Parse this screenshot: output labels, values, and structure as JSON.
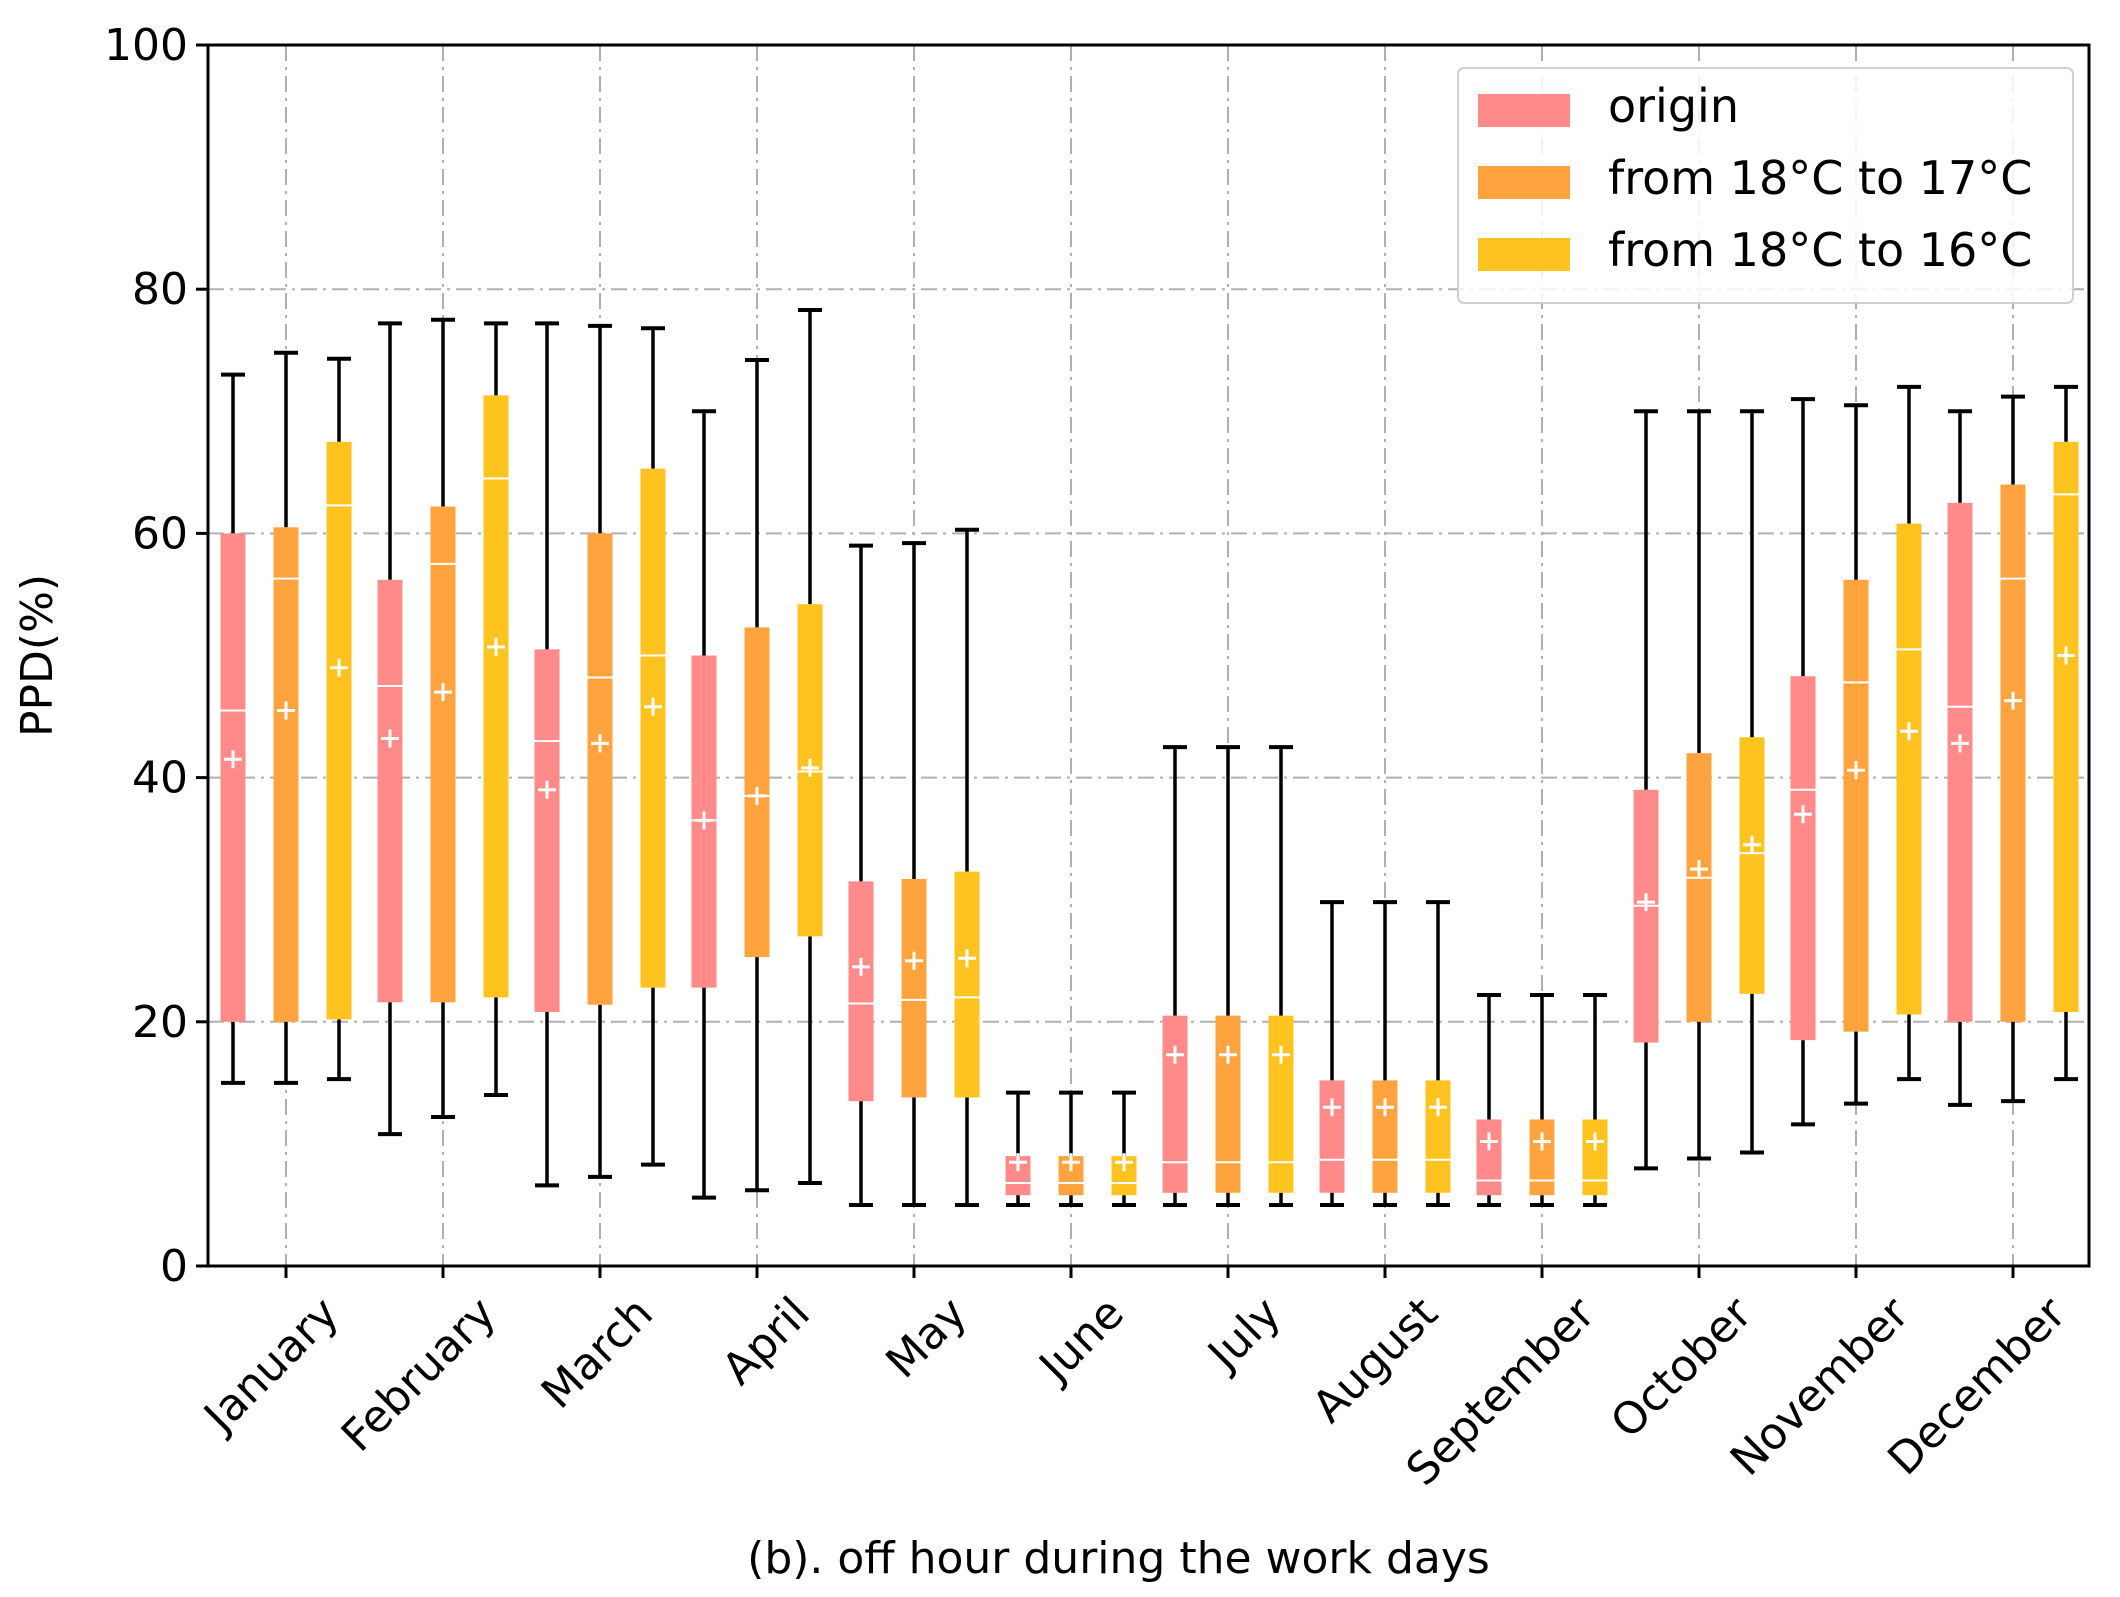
{
  "chart_data": {
    "type": "box",
    "title": "",
    "xlabel": "(b). off hour during the work days",
    "ylabel": "PPD(%)",
    "ylim": [
      0,
      100
    ],
    "yticks": [
      "0",
      "20",
      "40",
      "60",
      "80",
      "100"
    ],
    "grid": true,
    "legend_position": "top-right",
    "categories": [
      "January",
      "February",
      "March",
      "April",
      "May",
      "June",
      "July",
      "August",
      "September",
      "October",
      "November",
      "December"
    ],
    "series": [
      {
        "name": "origin",
        "color": "#FF8A8A",
        "boxes": [
          {
            "whislo": 15,
            "q1": 20,
            "med": 45.5,
            "q3": 60,
            "whishi": 73,
            "mean": 41.5
          },
          {
            "whislo": 10.8,
            "q1": 21.6,
            "med": 47.5,
            "q3": 56.2,
            "whishi": 77.2,
            "mean": 43.2
          },
          {
            "whislo": 6.6,
            "q1": 20.8,
            "med": 43,
            "q3": 50.5,
            "whishi": 77.2,
            "mean": 39
          },
          {
            "whislo": 5.6,
            "q1": 22.8,
            "med": 36.5,
            "q3": 50,
            "whishi": 70,
            "mean": 36.5
          },
          {
            "whislo": 5,
            "q1": 13.5,
            "med": 21.5,
            "q3": 31.5,
            "whishi": 59,
            "mean": 24.5
          },
          {
            "whislo": 5,
            "q1": 5.8,
            "med": 6.8,
            "q3": 9,
            "whishi": 14.2,
            "mean": 8.5
          },
          {
            "whislo": 5,
            "q1": 6,
            "med": 8.5,
            "q3": 20.5,
            "whishi": 42.5,
            "mean": 17.3
          },
          {
            "whislo": 5,
            "q1": 6,
            "med": 8.7,
            "q3": 15.2,
            "whishi": 29.8,
            "mean": 13
          },
          {
            "whislo": 5,
            "q1": 5.8,
            "med": 7,
            "q3": 12,
            "whishi": 22.2,
            "mean": 10.2
          },
          {
            "whislo": 8,
            "q1": 18.3,
            "med": 29.5,
            "q3": 39,
            "whishi": 70,
            "mean": 29.8
          },
          {
            "whislo": 11.6,
            "q1": 18.5,
            "med": 39,
            "q3": 48.3,
            "whishi": 71,
            "mean": 37
          },
          {
            "whislo": 13.2,
            "q1": 20,
            "med": 45.8,
            "q3": 62.5,
            "whishi": 70,
            "mean": 42.8
          }
        ]
      },
      {
        "name": "from 18°C to 17°C",
        "color": "#FFA33F",
        "boxes": [
          {
            "whislo": 15,
            "q1": 20,
            "med": 56.3,
            "q3": 60.5,
            "whishi": 74.8,
            "mean": 45.5
          },
          {
            "whislo": 12.2,
            "q1": 21.6,
            "med": 57.5,
            "q3": 62.2,
            "whishi": 77.5,
            "mean": 47
          },
          {
            "whislo": 7.3,
            "q1": 21.4,
            "med": 48.2,
            "q3": 60,
            "whishi": 77,
            "mean": 42.8
          },
          {
            "whislo": 6.2,
            "q1": 25.3,
            "med": 38.5,
            "q3": 52.3,
            "whishi": 74.2,
            "mean": 38.5
          },
          {
            "whislo": 5,
            "q1": 13.8,
            "med": 21.8,
            "q3": 31.7,
            "whishi": 59.2,
            "mean": 25
          },
          {
            "whislo": 5,
            "q1": 5.8,
            "med": 6.8,
            "q3": 9,
            "whishi": 14.2,
            "mean": 8.5
          },
          {
            "whislo": 5,
            "q1": 6,
            "med": 8.5,
            "q3": 20.5,
            "whishi": 42.5,
            "mean": 17.3
          },
          {
            "whislo": 5,
            "q1": 6,
            "med": 8.7,
            "q3": 15.2,
            "whishi": 29.8,
            "mean": 13
          },
          {
            "whislo": 5,
            "q1": 5.8,
            "med": 7,
            "q3": 12,
            "whishi": 22.2,
            "mean": 10.2
          },
          {
            "whislo": 8.8,
            "q1": 20,
            "med": 31.8,
            "q3": 42,
            "whishi": 70,
            "mean": 32.5
          },
          {
            "whislo": 13.3,
            "q1": 19.2,
            "med": 47.8,
            "q3": 56.2,
            "whishi": 70.5,
            "mean": 40.6
          },
          {
            "whislo": 13.5,
            "q1": 20,
            "med": 56.3,
            "q3": 64,
            "whishi": 71.2,
            "mean": 46.3
          }
        ]
      },
      {
        "name": "from 18°C to 16°C",
        "color": "#FFC31F",
        "boxes": [
          {
            "whislo": 15.3,
            "q1": 20.2,
            "med": 62.3,
            "q3": 67.5,
            "whishi": 74.3,
            "mean": 49
          },
          {
            "whislo": 14,
            "q1": 22,
            "med": 64.5,
            "q3": 71.3,
            "whishi": 77.2,
            "mean": 50.7
          },
          {
            "whislo": 8.3,
            "q1": 22.8,
            "med": 50,
            "q3": 65.3,
            "whishi": 76.8,
            "mean": 45.8
          },
          {
            "whislo": 6.8,
            "q1": 27,
            "med": 40.5,
            "q3": 54.2,
            "whishi": 78.3,
            "mean": 40.8
          },
          {
            "whislo": 5,
            "q1": 13.8,
            "med": 22,
            "q3": 32.3,
            "whishi": 60.3,
            "mean": 25.2
          },
          {
            "whislo": 5,
            "q1": 5.8,
            "med": 6.8,
            "q3": 9,
            "whishi": 14.2,
            "mean": 8.5
          },
          {
            "whislo": 5,
            "q1": 6,
            "med": 8.5,
            "q3": 20.5,
            "whishi": 42.5,
            "mean": 17.3
          },
          {
            "whislo": 5,
            "q1": 6,
            "med": 8.7,
            "q3": 15.2,
            "whishi": 29.8,
            "mean": 13
          },
          {
            "whislo": 5,
            "q1": 5.8,
            "med": 7,
            "q3": 12,
            "whishi": 22.2,
            "mean": 10.2
          },
          {
            "whislo": 9.3,
            "q1": 22.3,
            "med": 33.8,
            "q3": 43.3,
            "whishi": 70,
            "mean": 34.5
          },
          {
            "whislo": 15.3,
            "q1": 20.6,
            "med": 50.5,
            "q3": 60.8,
            "whishi": 72,
            "mean": 43.8
          },
          {
            "whislo": 15.3,
            "q1": 20.8,
            "med": 63.2,
            "q3": 67.5,
            "whishi": 72,
            "mean": 50
          }
        ]
      }
    ]
  }
}
